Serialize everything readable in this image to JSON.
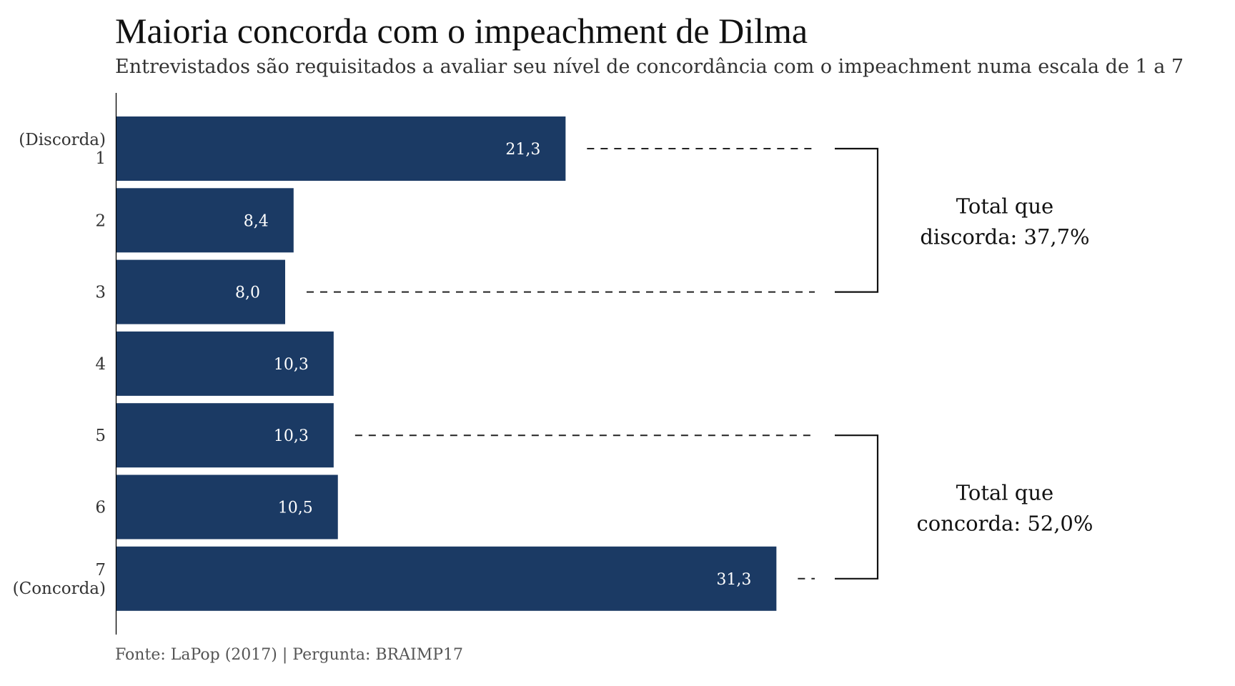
{
  "chart_data": {
    "type": "bar",
    "orientation": "horizontal",
    "title": "Maioria concorda com o impeachment de Dilma",
    "subtitle": "Entrevistados são requisitados a avaliar seu nível de concordância com o impeachment numa escala de 1 a 7",
    "caption": "Fonte: LaPop (2017) | Pergunta: BRAIMP17",
    "categories": [
      [
        "(Discorda)",
        "1"
      ],
      [
        "2"
      ],
      [
        "3"
      ],
      [
        "4"
      ],
      [
        "5"
      ],
      [
        "6"
      ],
      [
        "7",
        "(Concorda)"
      ]
    ],
    "values": [
      21.3,
      8.4,
      8.0,
      10.3,
      10.3,
      10.5,
      31.3
    ],
    "value_labels": [
      "21,3",
      "8,4",
      "8,0",
      "10,3",
      "10,3",
      "10,5",
      "31,3"
    ],
    "xlim": [
      0,
      50
    ],
    "bar_color": "#1b3a64",
    "value_label_color": "#ffffff",
    "grid": false,
    "brackets": [
      {
        "from_index": 0,
        "to_index": 2,
        "label_lines": [
          "Total que",
          "discorda: 37,7%"
        ]
      },
      {
        "from_index": 4,
        "to_index": 6,
        "label_lines": [
          "Total que",
          "concorda: 52,0%"
        ]
      }
    ]
  }
}
